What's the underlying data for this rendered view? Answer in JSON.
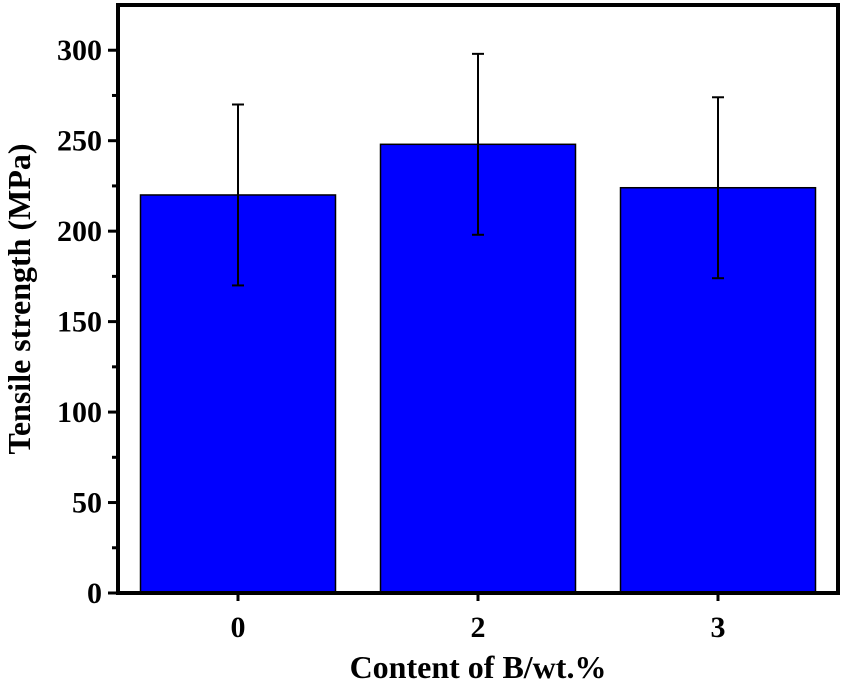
{
  "chart_data": {
    "type": "bar",
    "categories": [
      "0",
      "2",
      "3"
    ],
    "values": [
      220,
      248,
      224
    ],
    "error": [
      50,
      50,
      50
    ],
    "xlabel": "Content of B/wt.%",
    "ylabel": "Tensile strength (MPa)",
    "ylim": [
      0,
      325
    ],
    "yticks": [
      0,
      50,
      100,
      150,
      200,
      250,
      300
    ],
    "ytick_labels": [
      "0",
      "50",
      "100",
      "150",
      "200",
      "250",
      "300"
    ],
    "bar_color": "#0000ff",
    "edge_color": "#000000",
    "grid": false,
    "legend": "none"
  }
}
